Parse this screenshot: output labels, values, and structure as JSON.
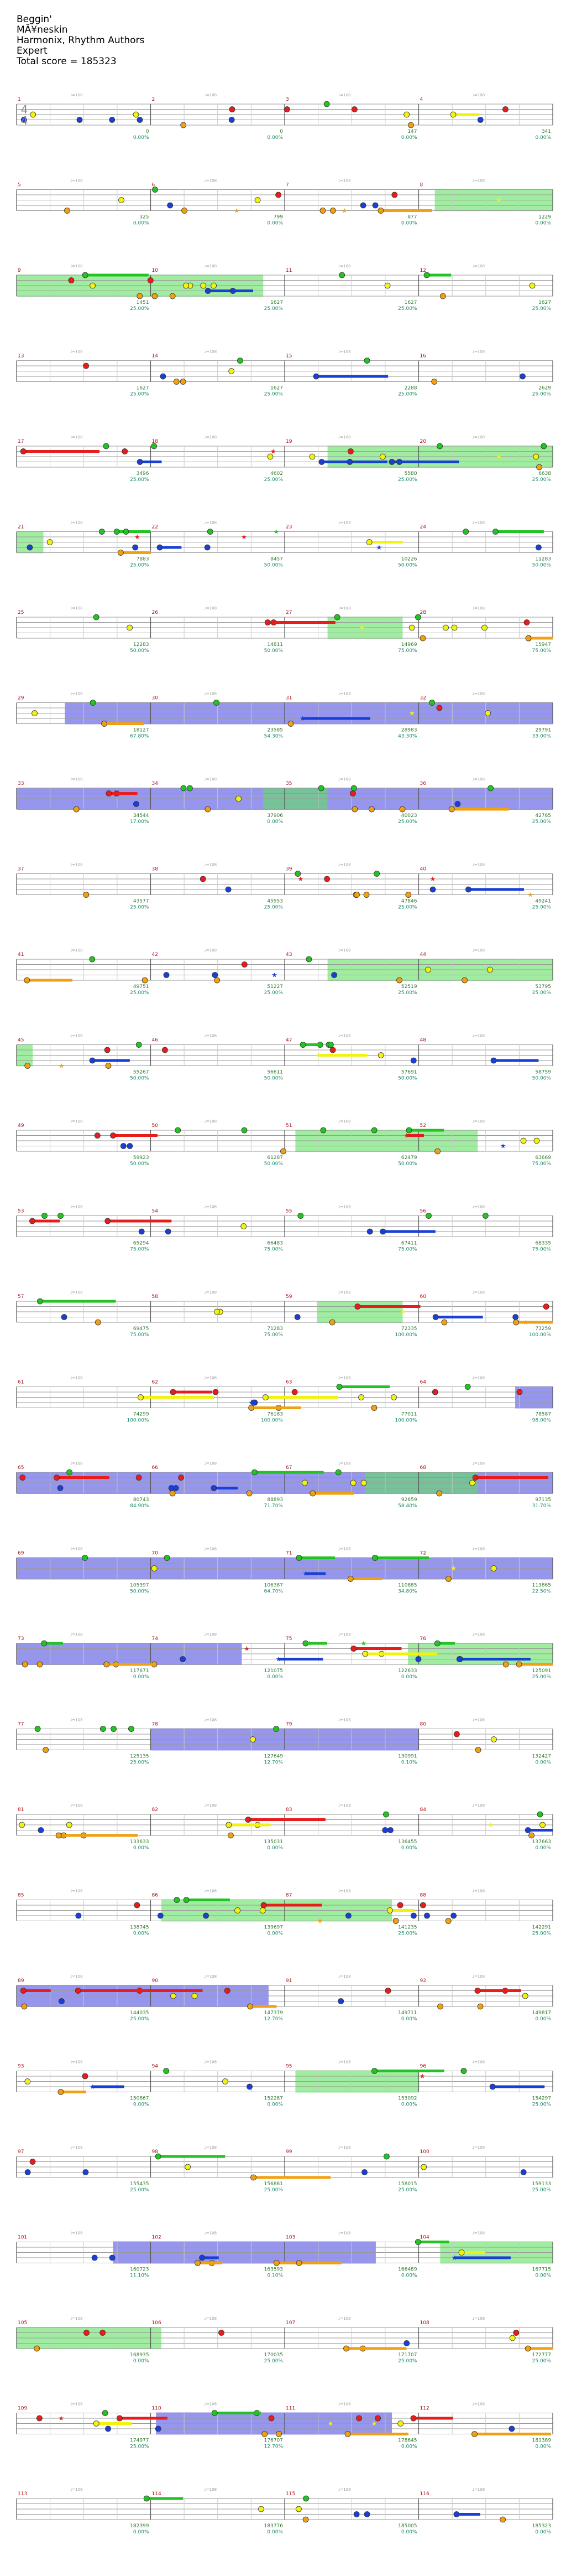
{
  "song": {
    "title": "Beggin'",
    "artist": "MÃ¥neskin",
    "charter": "Harmonix, Rhythm Authors",
    "difficulty": "Expert",
    "total_score_label": "Total score = 185323"
  },
  "time_signature": {
    "numerator": "4",
    "denominator": "4"
  },
  "colors": {
    "green": "#22c322",
    "red": "#e81c1c",
    "yellow": "#f2f20e",
    "blue": "#1a3fd4",
    "orange": "#f0a010",
    "star_power": "#60e060",
    "solo": "#4040e0",
    "measure_number": "#b0101a",
    "score": "#2a7a2a",
    "percent": "#1a8a6a"
  },
  "chart_data": {
    "type": "table",
    "title": "Beggin' — Expert guitar chart (Clone Hero style)",
    "measures_per_row": 4,
    "measure_count": 116,
    "rows": [
      {
        "row": 1,
        "measures": [
          1,
          2,
          3,
          4
        ],
        "scores": [
          "0",
          "0",
          "147",
          "341"
        ],
        "percents": [
          "0.00%",
          "0.00%",
          "0.00%",
          "0.00%"
        ]
      },
      {
        "row": 2,
        "measures": [
          5,
          6,
          7,
          8
        ],
        "scores": [
          "325",
          "799",
          "877",
          "1229"
        ],
        "percents": [
          "0.00%",
          "0.00%",
          "0.00%",
          "0.00%"
        ]
      },
      {
        "row": 3,
        "measures": [
          9,
          10,
          11,
          12
        ],
        "scores": [
          "1451",
          "1627",
          "1627",
          "1627"
        ],
        "percents": [
          "25.00%",
          "25.00%",
          "25.00%",
          "25.00%"
        ]
      },
      {
        "row": 4,
        "measures": [
          13,
          14,
          15,
          16
        ],
        "scores": [
          "1627",
          "1627",
          "2288",
          "2629"
        ],
        "percents": [
          "25.00%",
          "25.00%",
          "25.00%",
          "25.00%"
        ]
      },
      {
        "row": 5,
        "measures": [
          17,
          18,
          19,
          20
        ],
        "scores": [
          "3496",
          "4602",
          "5580",
          "6638"
        ],
        "percents": [
          "25.00%",
          "25.00%",
          "25.00%",
          "25.00%"
        ]
      },
      {
        "row": 6,
        "measures": [
          21,
          22,
          23,
          24
        ],
        "scores": [
          "7883",
          "8457",
          "10226",
          "11283"
        ],
        "percents": [
          "25.00%",
          "50.00%",
          "50.00%",
          "50.00%"
        ]
      },
      {
        "row": 7,
        "measures": [
          25,
          26,
          27,
          28
        ],
        "scores": [
          "12283",
          "14811",
          "14969",
          "15947"
        ],
        "percents": [
          "50.00%",
          "50.00%",
          "75.00%",
          "75.00%"
        ]
      },
      {
        "row": 8,
        "measures": [
          29,
          30,
          31,
          32
        ],
        "scores": [
          "18127",
          "23585",
          "28983",
          "29791"
        ],
        "percents": [
          "67.80%",
          "54.30%",
          "43.30%",
          "33.00%"
        ]
      },
      {
        "row": 9,
        "measures": [
          33,
          34,
          35,
          36
        ],
        "scores": [
          "34544",
          "37906",
          "40023",
          "42765"
        ],
        "percents": [
          "17.00%",
          "0.00%",
          "25.00%",
          "25.00%"
        ]
      },
      {
        "row": 10,
        "measures": [
          37,
          38,
          39,
          40
        ],
        "scores": [
          "43577",
          "45553",
          "47846",
          "49241"
        ],
        "percents": [
          "25.00%",
          "25.00%",
          "25.00%",
          "25.00%"
        ]
      },
      {
        "row": 11,
        "measures": [
          41,
          42,
          43,
          44
        ],
        "scores": [
          "49751",
          "51227",
          "52519",
          "53795"
        ],
        "percents": [
          "25.00%",
          "25.00%",
          "25.00%",
          "25.00%"
        ]
      },
      {
        "row": 12,
        "measures": [
          45,
          46,
          47,
          48
        ],
        "scores": [
          "55267",
          "56611",
          "57691",
          "58759"
        ],
        "percents": [
          "50.00%",
          "50.00%",
          "50.00%",
          "50.00%"
        ]
      },
      {
        "row": 13,
        "measures": [
          49,
          50,
          51,
          52
        ],
        "scores": [
          "59923",
          "61287",
          "62479",
          "63669"
        ],
        "percents": [
          "50.00%",
          "50.00%",
          "50.00%",
          "75.00%"
        ]
      },
      {
        "row": 14,
        "measures": [
          53,
          54,
          55,
          56
        ],
        "scores": [
          "65294",
          "66483",
          "67411",
          "68335"
        ],
        "percents": [
          "75.00%",
          "75.00%",
          "75.00%",
          "75.00%"
        ]
      },
      {
        "row": 15,
        "measures": [
          57,
          58,
          59,
          60
        ],
        "scores": [
          "69475",
          "71283",
          "72335",
          "73259"
        ],
        "percents": [
          "75.00%",
          "75.00%",
          "100.00%",
          "100.00%"
        ]
      },
      {
        "row": 16,
        "measures": [
          61,
          62,
          63,
          64
        ],
        "scores": [
          "74299",
          "76183",
          "77011",
          "78587"
        ],
        "percents": [
          "100.00%",
          "100.00%",
          "100.00%",
          "98.00%"
        ]
      },
      {
        "row": 17,
        "measures": [
          65,
          66,
          67,
          68
        ],
        "scores": [
          "80743",
          "88893",
          "92659",
          "97135"
        ],
        "percents": [
          "84.90%",
          "71.70%",
          "58.40%",
          "31.70%"
        ]
      },
      {
        "row": 18,
        "measures": [
          69,
          70,
          71,
          72
        ],
        "scores": [
          "105397",
          "106387",
          "110885",
          "113865"
        ],
        "percents": [
          "50.00%",
          "64.70%",
          "34.80%",
          "22.50%"
        ]
      },
      {
        "row": 19,
        "measures": [
          73,
          74,
          75,
          76
        ],
        "scores": [
          "117671",
          "121075",
          "122633",
          "125091"
        ],
        "percents": [
          "0.00%",
          "0.00%",
          "0.00%",
          "25.00%"
        ]
      },
      {
        "row": 20,
        "measures": [
          77,
          78,
          79,
          80
        ],
        "scores": [
          "125135",
          "127649",
          "130991",
          "132427"
        ],
        "percents": [
          "25.00%",
          "12.70%",
          "0.10%",
          "0.00%"
        ]
      },
      {
        "row": 21,
        "measures": [
          81,
          82,
          83,
          84
        ],
        "scores": [
          "133633",
          "135031",
          "136455",
          "137663"
        ],
        "percents": [
          "0.00%",
          "0.00%",
          "0.00%",
          "0.00%"
        ]
      },
      {
        "row": 22,
        "measures": [
          85,
          86,
          87,
          88
        ],
        "scores": [
          "138745",
          "139697",
          "141235",
          "142291"
        ],
        "percents": [
          "0.00%",
          "0.00%",
          "25.00%",
          "25.00%"
        ]
      },
      {
        "row": 23,
        "measures": [
          89,
          90,
          91,
          92
        ],
        "scores": [
          "144035",
          "147379",
          "149711",
          "149817"
        ],
        "percents": [
          "25.00%",
          "12.70%",
          "0.00%",
          "0.00%"
        ]
      },
      {
        "row": 24,
        "measures": [
          93,
          94,
          95,
          96
        ],
        "scores": [
          "150867",
          "152287",
          "153092",
          "154297"
        ],
        "percents": [
          "0.00%",
          "0.00%",
          "0.00%",
          "25.00%"
        ]
      },
      {
        "row": 25,
        "measures": [
          97,
          98,
          99,
          100
        ],
        "scores": [
          "155435",
          "156861",
          "158015",
          "159133"
        ],
        "percents": [
          "25.00%",
          "25.00%",
          "25.00%",
          "25.00%"
        ]
      },
      {
        "row": 26,
        "measures": [
          101,
          102,
          103,
          104
        ],
        "scores": [
          "160723",
          "163593",
          "166489",
          "167715"
        ],
        "percents": [
          "11.10%",
          "0.10%",
          "0.00%",
          "0.00%"
        ]
      },
      {
        "row": 27,
        "measures": [
          105,
          106,
          107,
          108
        ],
        "scores": [
          "168935",
          "170035",
          "171707",
          "172777"
        ],
        "percents": [
          "0.00%",
          "25.00%",
          "25.00%",
          "25.00%"
        ]
      },
      {
        "row": 28,
        "measures": [
          109,
          110,
          111,
          112
        ],
        "scores": [
          "174977",
          "176707",
          "178645",
          "181389"
        ],
        "percents": [
          "25.00%",
          "12.70%",
          "0.00%",
          "0.00%"
        ]
      },
      {
        "row": 29,
        "measures": [
          113,
          114,
          115,
          116
        ],
        "scores": [
          "182399",
          "183776",
          "185005",
          "185323"
        ],
        "percents": [
          "0.00%",
          "0.00%",
          "0.00%",
          "0.00%"
        ]
      }
    ],
    "tempo_markers": [
      {
        "row": 1,
        "labels": [
          "♩=108",
          "♩=108",
          "♩=107",
          "♩=105"
        ]
      },
      {
        "row": 2,
        "labels": [
          "♩=106",
          "♩=108",
          "♩=107",
          "♩=105"
        ]
      },
      {
        "row": 3,
        "labels": [
          "♩=108",
          "♩=108",
          "♩=107",
          "♩=105"
        ]
      },
      {
        "row": 4,
        "labels": [
          "♩=108",
          "♩=108",
          "♩=104",
          "♩=105"
        ]
      }
    ]
  }
}
